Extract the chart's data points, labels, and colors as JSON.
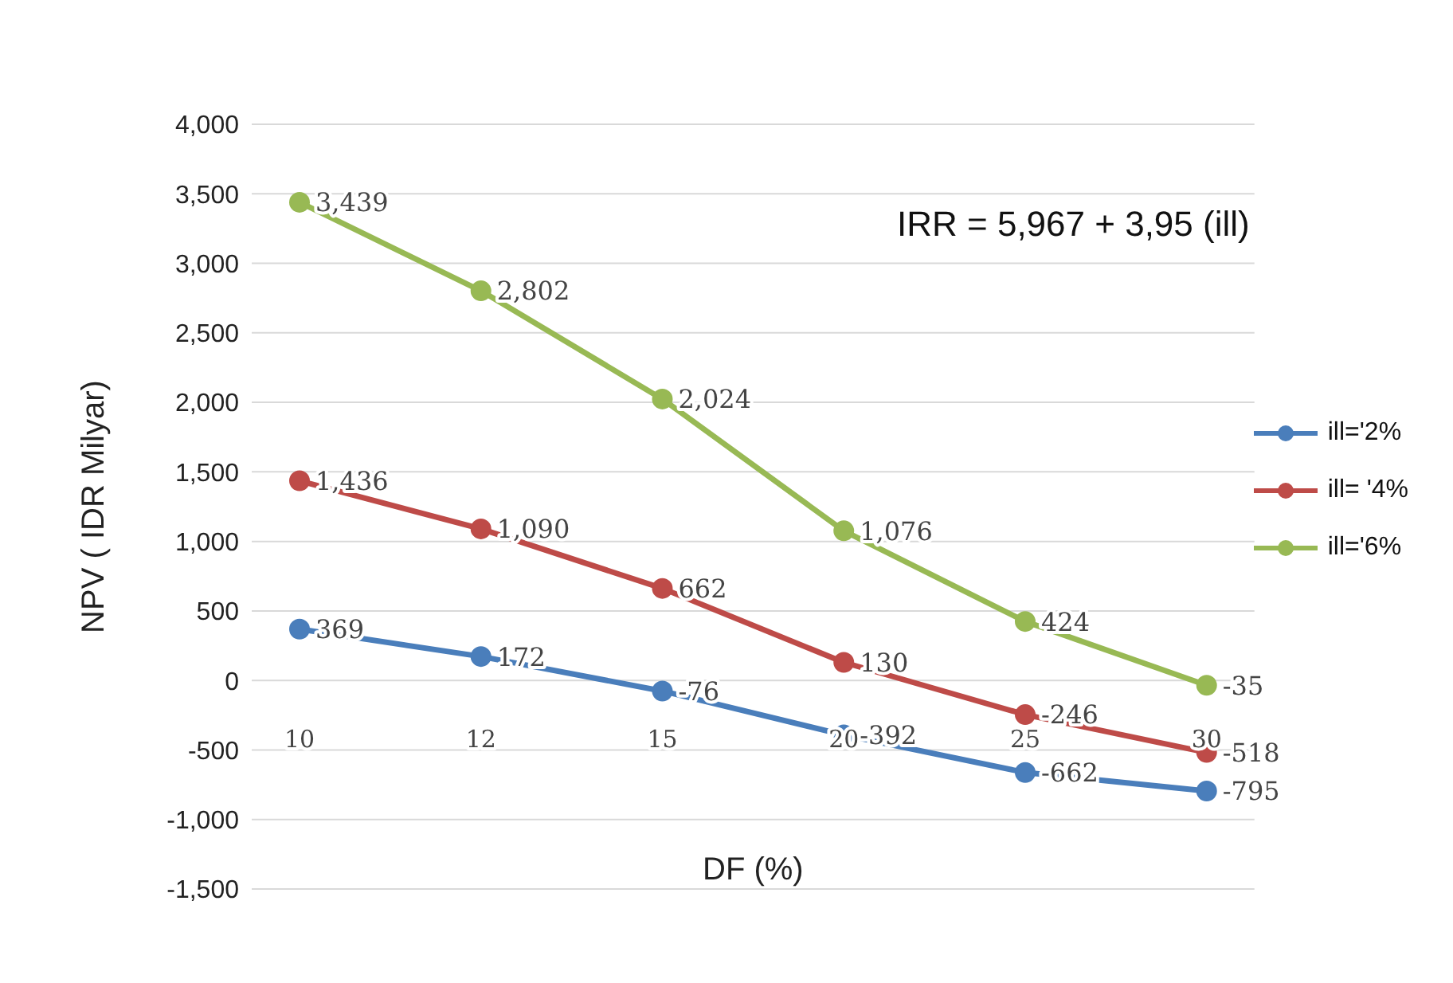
{
  "chart_data": {
    "type": "line",
    "xlabel": "DF (%)",
    "ylabel": "NPV ( IDR Milyar)",
    "annotations": [
      "IRR = 5,967 + 3,95 (ill)"
    ],
    "categories": [
      "10",
      "12",
      "15",
      "20",
      "25",
      "30"
    ],
    "series": [
      {
        "name": "ill='2%",
        "color": "#4a7ebb",
        "values": [
          369,
          172,
          -76,
          -392,
          -662,
          -795
        ],
        "value_labels": [
          "369",
          "172",
          "-76",
          "-392",
          "-662",
          "-795"
        ]
      },
      {
        "name": "ill= '4%",
        "color": "#be4b48",
        "values": [
          1436,
          1090,
          662,
          130,
          -246,
          -518
        ],
        "value_labels": [
          "1,436",
          "1,090",
          "662",
          "130",
          "-246",
          "-518"
        ]
      },
      {
        "name": "ill='6%",
        "color": "#98b954",
        "values": [
          3439,
          2802,
          2024,
          1076,
          424,
          -35
        ],
        "value_labels": [
          "3,439",
          "2,802",
          "2,024",
          "1,076",
          "424",
          "-35"
        ]
      }
    ],
    "ylim": [
      -1500,
      4000
    ],
    "yticks": [
      {
        "value": -1500,
        "label": "-1,500"
      },
      {
        "value": -1000,
        "label": "-1,000"
      },
      -500,
      0,
      500,
      {
        "value": 1000,
        "label": "1,000"
      },
      {
        "value": 1500,
        "label": "1,500"
      },
      {
        "value": 2000,
        "label": "2,000"
      },
      {
        "value": 2500,
        "label": "2,500"
      },
      {
        "value": 3000,
        "label": "3,000"
      },
      {
        "value": 3500,
        "label": "3,500"
      },
      {
        "value": 4000,
        "label": "4,000"
      }
    ],
    "grid": "y",
    "legend": "right",
    "marker": "circle",
    "line_style": "solid"
  }
}
